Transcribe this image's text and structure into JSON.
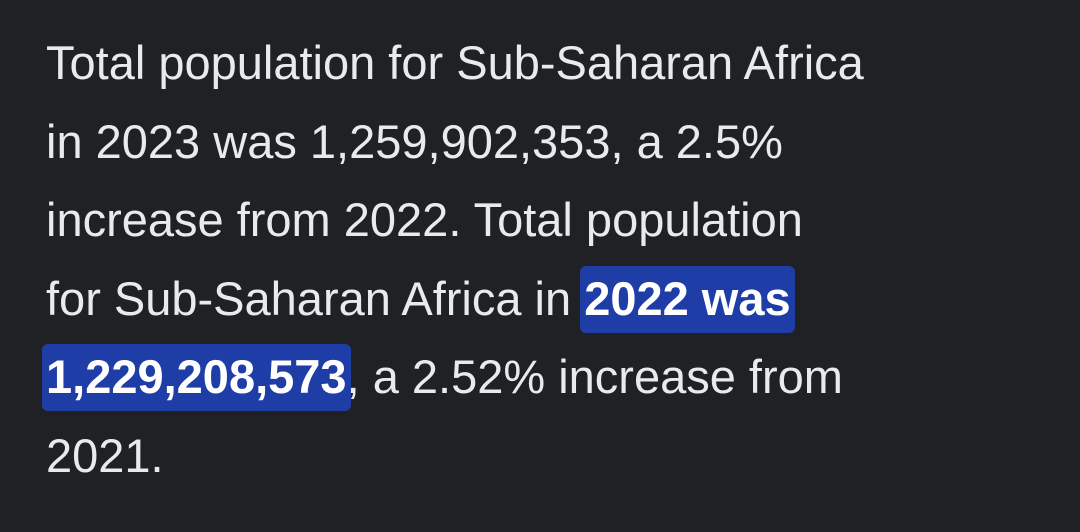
{
  "answer": {
    "lines": [
      [
        {
          "text": "Total population for Sub-Saharan Africa"
        }
      ],
      [
        {
          "text": "in 2023 was 1,259,902,353, a 2.5%"
        }
      ],
      [
        {
          "text": "increase from 2022. Total population"
        }
      ],
      [
        {
          "text": "for Sub-Saharan Africa in "
        },
        {
          "text": "2022 was",
          "highlight": true
        }
      ],
      [
        {
          "text": "1,229,208,573",
          "highlight": true
        },
        {
          "text": ", a 2.52% increase from"
        }
      ],
      [
        {
          "text": "2021."
        }
      ]
    ]
  }
}
